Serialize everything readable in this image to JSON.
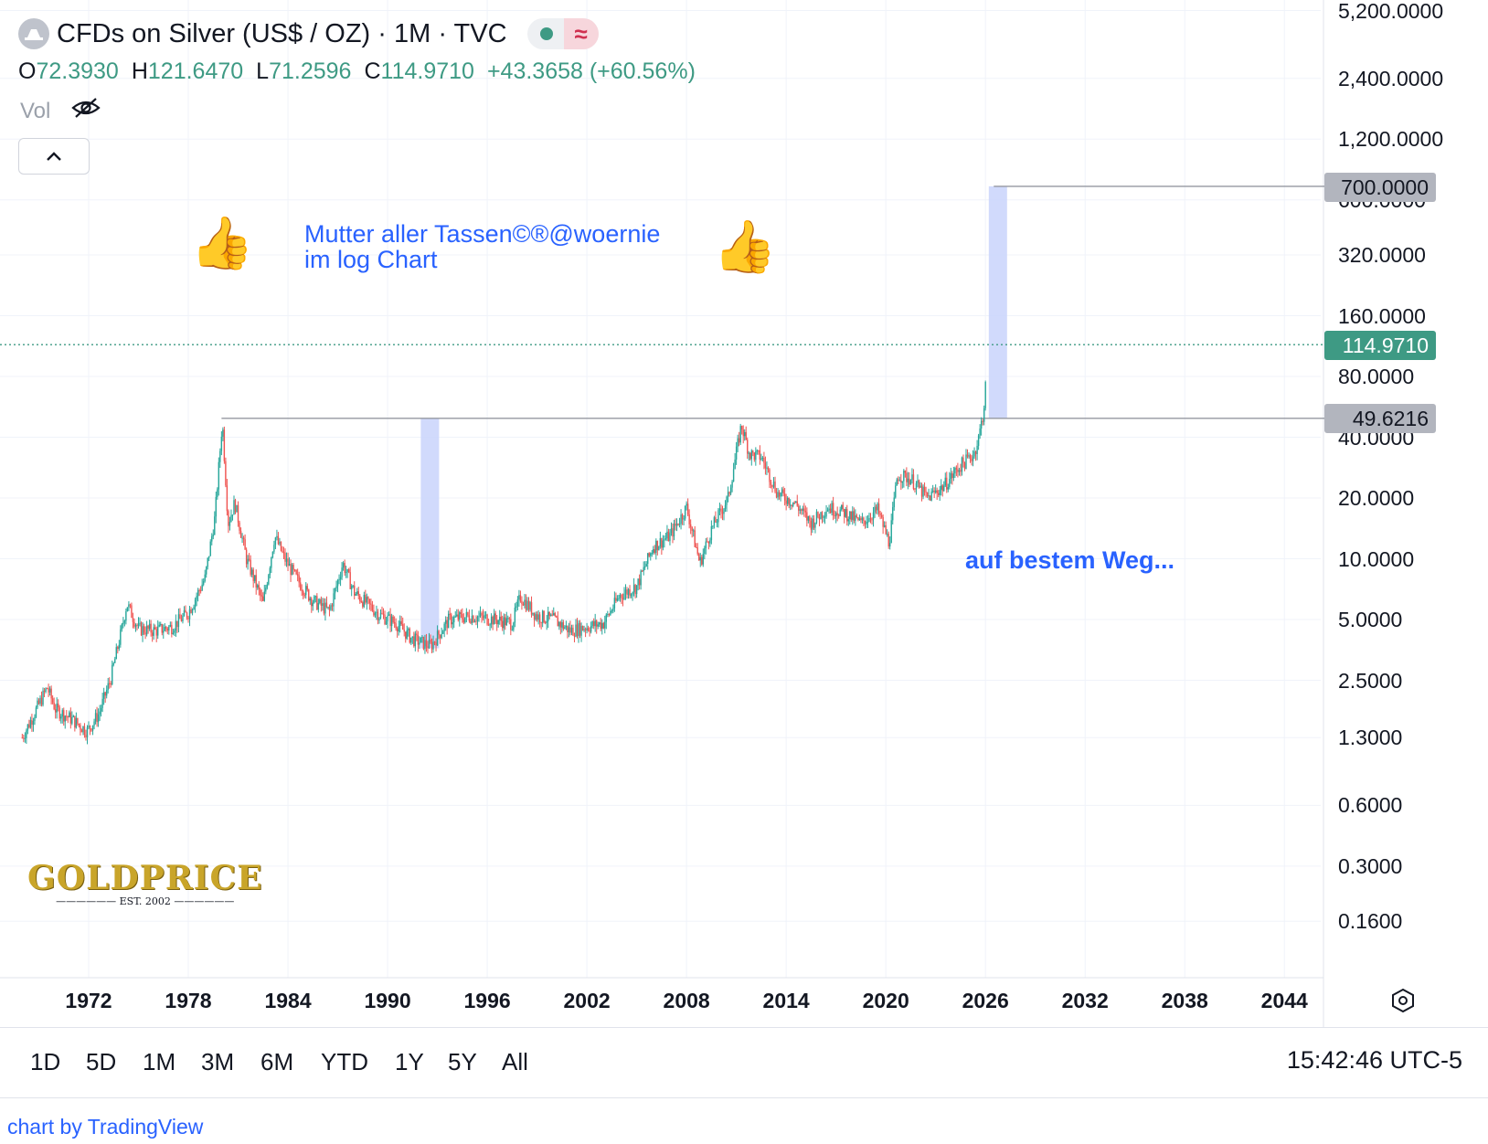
{
  "header": {
    "symbol_title": "CFDs on Silver (US$ / OZ) · 1M · TVC",
    "market_status": "market-open",
    "o_label": "O",
    "o_value": "72.3930",
    "h_label": "H",
    "h_value": "121.6470",
    "l_label": "L",
    "l_value": "71.2596",
    "c_label": "C",
    "c_value": "114.9710",
    "change": "+43.3658 (+60.56%)",
    "vol_label": "Vol"
  },
  "annotations": {
    "title_line1": "Mutter aller Tassen©®@woernie",
    "title_line2": "im log Chart",
    "note": "auf bestem Weg...",
    "left_emoji": "👍",
    "right_emoji": "👍"
  },
  "logo": {
    "text": "GOLDPRICE",
    "sub": "EST. 2002"
  },
  "range_buttons": [
    "1D",
    "5D",
    "1M",
    "3M",
    "6M",
    "YTD",
    "1Y",
    "5Y",
    "All"
  ],
  "clock": "15:42:46 UTC-5",
  "footer": "chart by TradingView",
  "colors": {
    "up": "#26a69a",
    "down": "#ef5350",
    "accent": "#2962ff",
    "last_price_bg": "#3e9a84",
    "level_flag_bg": "#b2b5be",
    "highlight_box": "#c9d4fb"
  },
  "chart_data": {
    "type": "candlestick",
    "scale": "log",
    "interval": "1M",
    "x_ticks": [
      "1972",
      "1978",
      "1984",
      "1990",
      "1996",
      "2002",
      "2008",
      "2014",
      "2020",
      "2026",
      "2032",
      "2038",
      "2044"
    ],
    "y_ticks": [
      "5,200.0000",
      "2,400.0000",
      "1,200.0000",
      "600.0000",
      "320.0000",
      "160.0000",
      "80.0000",
      "40.0000",
      "20.0000",
      "10.0000",
      "5.0000",
      "2.5000",
      "1.3000",
      "0.6000",
      "0.3000",
      "0.1600"
    ],
    "last_price": "114.9710",
    "levels": [
      {
        "label": "700.0000",
        "value": 700,
        "from_year": 2026.5
      },
      {
        "label": "49.6216",
        "value": 49.6216,
        "from_year": 1980
      }
    ],
    "highlight_boxes": [
      {
        "x_from": 1992.0,
        "x_to": 1993.1,
        "y_low": 3.6,
        "y_high": 49.6216
      },
      {
        "x_from": 2026.2,
        "x_to": 2027.3,
        "y_low": 49.6216,
        "y_high": 700
      }
    ],
    "price_path": [
      [
        1968.0,
        1.3
      ],
      [
        1969.0,
        1.9
      ],
      [
        1969.5,
        2.3
      ],
      [
        1970.0,
        1.8
      ],
      [
        1971.0,
        1.6
      ],
      [
        1971.9,
        1.4
      ],
      [
        1972.6,
        1.7
      ],
      [
        1973.3,
        2.5
      ],
      [
        1974.0,
        4.5
      ],
      [
        1974.3,
        6.0
      ],
      [
        1975.0,
        4.5
      ],
      [
        1976.0,
        4.4
      ],
      [
        1977.0,
        4.6
      ],
      [
        1978.0,
        5.4
      ],
      [
        1979.0,
        8.0
      ],
      [
        1979.6,
        16
      ],
      [
        1980.05,
        48
      ],
      [
        1980.4,
        15
      ],
      [
        1980.8,
        19
      ],
      [
        1981.5,
        10
      ],
      [
        1982.5,
        6.0
      ],
      [
        1983.2,
        13
      ],
      [
        1983.8,
        10
      ],
      [
        1984.5,
        8.0
      ],
      [
        1985.5,
        6.2
      ],
      [
        1986.5,
        5.5
      ],
      [
        1987.3,
        9.5
      ],
      [
        1988.0,
        6.8
      ],
      [
        1989.5,
        5.3
      ],
      [
        1990.5,
        4.8
      ],
      [
        1991.5,
        4.0
      ],
      [
        1992.6,
        3.7
      ],
      [
        1993.7,
        5.0
      ],
      [
        1995.0,
        5.2
      ],
      [
        1996.5,
        5.0
      ],
      [
        1997.5,
        4.8
      ],
      [
        1998.0,
        6.5
      ],
      [
        1999.0,
        5.2
      ],
      [
        2000.0,
        5.0
      ],
      [
        2001.0,
        4.4
      ],
      [
        2002.0,
        4.6
      ],
      [
        2003.0,
        4.8
      ],
      [
        2004.0,
        6.6
      ],
      [
        2005.0,
        7.3
      ],
      [
        2006.0,
        11.5
      ],
      [
        2007.0,
        13.0
      ],
      [
        2008.0,
        18.0
      ],
      [
        2008.8,
        9.5
      ],
      [
        2009.5,
        14
      ],
      [
        2010.5,
        20
      ],
      [
        2011.3,
        46
      ],
      [
        2011.8,
        33
      ],
      [
        2012.5,
        32
      ],
      [
        2013.5,
        21
      ],
      [
        2014.5,
        19
      ],
      [
        2015.5,
        15
      ],
      [
        2016.5,
        18
      ],
      [
        2017.5,
        17
      ],
      [
        2018.5,
        15
      ],
      [
        2019.5,
        17.5
      ],
      [
        2020.2,
        12
      ],
      [
        2020.7,
        26
      ],
      [
        2021.5,
        25
      ],
      [
        2022.5,
        20
      ],
      [
        2023.5,
        23
      ],
      [
        2024.5,
        29
      ],
      [
        2025.3,
        33
      ],
      [
        2025.6,
        40
      ],
      [
        2025.9,
        55
      ],
      [
        2026.0,
        72
      ],
      [
        2026.05,
        115
      ]
    ]
  }
}
